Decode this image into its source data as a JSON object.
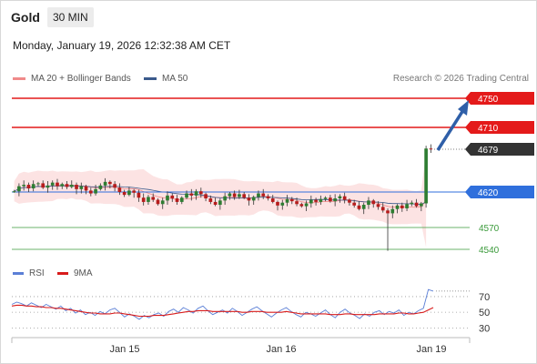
{
  "header": {
    "title": "Gold",
    "timeframe": "30 MIN"
  },
  "datetime": "Monday, January 19, 2026 12:32:38 AM CET",
  "legend": {
    "items": [
      {
        "label": "MA 20 + Bollinger Bands",
        "color": "#f08a8a"
      },
      {
        "label": "MA 50",
        "color": "#3a5a8c"
      }
    ],
    "credit": "Research © 2026 Trading Central"
  },
  "indicator_legend": {
    "items": [
      {
        "label": "RSI",
        "color": "#5b7fd6"
      },
      {
        "label": "9MA",
        "color": "#d81b1b"
      }
    ]
  },
  "levels": {
    "resistance": [
      {
        "value": 4750,
        "label": "4750",
        "color": "#e41a1a"
      },
      {
        "value": 4710,
        "label": "4710",
        "color": "#e41a1a"
      }
    ],
    "last": {
      "value": 4679,
      "label": "4679",
      "color": "#333333"
    },
    "pivot": {
      "value": 4620,
      "label": "4620",
      "color": "#2f6fdc"
    },
    "support": [
      {
        "value": 4570,
        "label": "4570",
        "color": "#3a9a3a"
      },
      {
        "value": 4540,
        "label": "4540",
        "color": "#3a9a3a"
      }
    ]
  },
  "chart_data": [
    {
      "type": "candlestick",
      "title": "",
      "x_ticks": [
        "Jan 15",
        "Jan 16",
        "Jan 19"
      ],
      "ylim": [
        4530,
        4765
      ],
      "series": [
        {
          "name": "MA 20 + Bollinger Bands"
        },
        {
          "name": "MA 50"
        }
      ],
      "price_path": [
        4621,
        4628,
        4630,
        4625,
        4631,
        4632,
        4626,
        4629,
        4633,
        4628,
        4631,
        4627,
        4630,
        4624,
        4628,
        4622,
        4618,
        4624,
        4629,
        4634,
        4631,
        4626,
        4620,
        4616,
        4622,
        4619,
        4612,
        4606,
        4613,
        4609,
        4603,
        4608,
        4615,
        4611,
        4606,
        4612,
        4618,
        4615,
        4621,
        4617,
        4611,
        4606,
        4602,
        4608,
        4614,
        4618,
        4613,
        4617,
        4612,
        4608,
        4613,
        4618,
        4614,
        4611,
        4606,
        4601,
        4605,
        4610,
        4607,
        4603,
        4600,
        4604,
        4609,
        4606,
        4610,
        4612,
        4607,
        4611,
        4614,
        4609,
        4605,
        4601,
        4596,
        4602,
        4608,
        4603,
        4599,
        4594,
        4590,
        4596,
        4601,
        4597,
        4603,
        4605,
        4600,
        4604,
        4680,
        4679
      ],
      "grid": false
    },
    {
      "type": "line",
      "title": "",
      "series": [
        {
          "name": "RSI",
          "values": [
            60,
            63,
            61,
            58,
            62,
            59,
            56,
            60,
            57,
            54,
            58,
            52,
            55,
            49,
            53,
            47,
            50,
            46,
            51,
            48,
            53,
            55,
            50,
            44,
            48,
            45,
            41,
            46,
            43,
            47,
            49,
            45,
            51,
            54,
            50,
            56,
            53,
            49,
            55,
            58,
            52,
            47,
            50,
            53,
            49,
            55,
            51,
            46,
            50,
            54,
            57,
            52,
            48,
            44,
            49,
            53,
            56,
            51,
            47,
            44,
            50,
            48,
            45,
            49,
            53,
            47,
            43,
            50,
            54,
            49,
            46,
            42,
            48,
            45,
            50,
            52,
            47,
            51,
            49,
            53,
            46,
            50,
            48,
            52,
            55,
            79,
            77
          ]
        },
        {
          "name": "9MA",
          "values": [
            58,
            59,
            59,
            58,
            58,
            57,
            57,
            56,
            56,
            55,
            55,
            54,
            53,
            52,
            51,
            50,
            49,
            49,
            48,
            48,
            48,
            49,
            49,
            48,
            47,
            46,
            45,
            45,
            45,
            46,
            46,
            46,
            47,
            48,
            49,
            50,
            51,
            51,
            52,
            52,
            52,
            51,
            51,
            51,
            51,
            51,
            51,
            50,
            50,
            51,
            51,
            51,
            50,
            50,
            50,
            50,
            51,
            50,
            49,
            48,
            48,
            48,
            48,
            48,
            48,
            47,
            47,
            47,
            48,
            48,
            47,
            47,
            47,
            47,
            47,
            48,
            48,
            48,
            48,
            49,
            49,
            48,
            48,
            49,
            50,
            53,
            56
          ]
        }
      ],
      "y_ticks": [
        70,
        50,
        30
      ],
      "ylim": [
        20,
        85
      ],
      "reference_lines": [
        70,
        50,
        30
      ],
      "grid": false
    }
  ]
}
